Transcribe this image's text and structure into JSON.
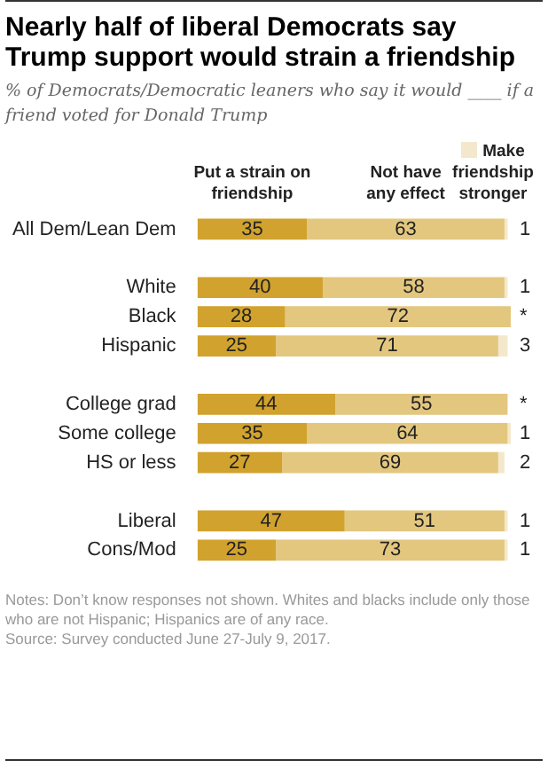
{
  "chart_data": {
    "type": "bar",
    "orientation": "horizontal",
    "stacked": true,
    "title": "Nearly half of liberal Democrats say Trump support would strain a friendship",
    "subtitle": "% of Democrats/Democratic leaners who say it would ____ if a friend voted for Donald Trump",
    "categories": [
      "All Dem/Lean Dem",
      null,
      "White",
      "Black",
      "Hispanic",
      null,
      "College grad",
      "Some college",
      "HS or less",
      null,
      "Liberal",
      "Cons/Mod"
    ],
    "series": [
      {
        "name": "Put a strain on friendship",
        "color": "#d1a22d",
        "values": [
          35,
          null,
          40,
          28,
          25,
          null,
          44,
          35,
          27,
          null,
          47,
          25
        ]
      },
      {
        "name": "Not have any effect",
        "color": "#e3c77f",
        "values": [
          63,
          null,
          58,
          72,
          71,
          null,
          55,
          64,
          69,
          null,
          51,
          73
        ]
      },
      {
        "name": "Make friendship stronger",
        "color": "#f3e8cc",
        "values": [
          1,
          null,
          1,
          0,
          3,
          null,
          0,
          1,
          2,
          null,
          1,
          1
        ],
        "value_labels": [
          "1",
          null,
          "1",
          "*",
          "3",
          null,
          "*",
          "1",
          "2",
          null,
          "1",
          "1"
        ]
      }
    ],
    "xlim": [
      0,
      100
    ],
    "tick_labels": "y",
    "grid": false,
    "legend": "top right",
    "data_labels": true,
    "annotations": [
      "Notes: Don’t know responses not shown. Whites and blacks include only those who are not Hispanic; Hispanics are of any race.",
      "Source: Survey conducted June 27-July 9, 2017."
    ]
  }
}
